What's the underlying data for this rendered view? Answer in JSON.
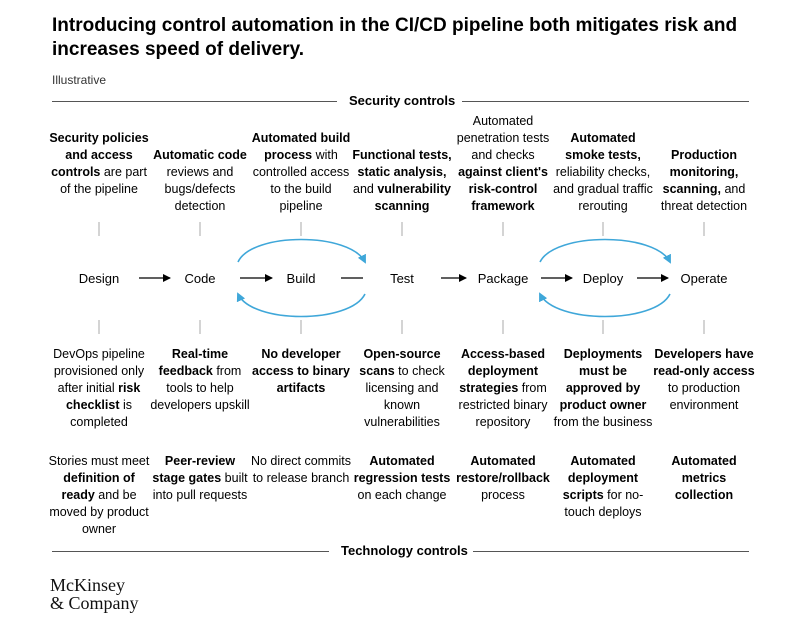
{
  "header": {
    "title": "Introducing control automation in the CI/CD pipeline both mitigates risk and increases speed of delivery.",
    "subtitle": "Illustrative"
  },
  "sections": {
    "security_label": "Security controls",
    "technology_label": "Technology controls"
  },
  "security_controls": [
    {
      "parts": [
        {
          "t": "Security policies and access controls",
          "b": true
        },
        {
          "t": " are part of the pipeline",
          "b": false
        }
      ]
    },
    {
      "parts": [
        {
          "t": "Automatic code",
          "b": true
        },
        {
          "t": " reviews and bugs/defects detection",
          "b": false
        }
      ]
    },
    {
      "parts": [
        {
          "t": "Automated build process",
          "b": true
        },
        {
          "t": " with controlled access to the build pipeline",
          "b": false
        }
      ]
    },
    {
      "parts": [
        {
          "t": "Functional tests, static analysis,",
          "b": true
        },
        {
          "t": " and ",
          "b": false
        },
        {
          "t": "vulnerability scanning",
          "b": true
        }
      ]
    },
    {
      "parts": [
        {
          "t": "Automated penetration tests and checks ",
          "b": false
        },
        {
          "t": "against client's risk-control framework",
          "b": true
        }
      ]
    },
    {
      "parts": [
        {
          "t": "Automated smoke tests,",
          "b": true
        },
        {
          "t": " reliability checks, and gradual traffic rerouting",
          "b": false
        }
      ]
    },
    {
      "parts": [
        {
          "t": "Production monitoring, scanning,",
          "b": true
        },
        {
          "t": " and threat detection",
          "b": false
        }
      ]
    }
  ],
  "stages": [
    "Design",
    "Code",
    "Build",
    "Test",
    "Package",
    "Deploy",
    "Operate"
  ],
  "tech_controls_row1": [
    {
      "parts": [
        {
          "t": "DevOps pipeline provisioned only after initial ",
          "b": false
        },
        {
          "t": "risk checklist",
          "b": true
        },
        {
          "t": " is completed",
          "b": false
        }
      ]
    },
    {
      "parts": [
        {
          "t": "Real-time feedback",
          "b": true
        },
        {
          "t": " from tools to help developers upskill",
          "b": false
        }
      ]
    },
    {
      "parts": [
        {
          "t": "No developer access to binary artifacts",
          "b": true
        }
      ]
    },
    {
      "parts": [
        {
          "t": "Open-source scans",
          "b": true
        },
        {
          "t": " to check licensing and known vulnerabilities",
          "b": false
        }
      ]
    },
    {
      "parts": [
        {
          "t": "Access-based deployment strategies",
          "b": true
        },
        {
          "t": " from restricted binary repository",
          "b": false
        }
      ]
    },
    {
      "parts": [
        {
          "t": "Deployments must be approved by product owner",
          "b": true
        },
        {
          "t": " from the business",
          "b": false
        }
      ]
    },
    {
      "parts": [
        {
          "t": "Developers have read-only access",
          "b": true
        },
        {
          "t": " to production environment",
          "b": false
        }
      ]
    }
  ],
  "tech_controls_row2": [
    {
      "parts": [
        {
          "t": "Stories must meet ",
          "b": false
        },
        {
          "t": "definition of ready",
          "b": true
        },
        {
          "t": " and be moved by product owner",
          "b": false
        }
      ]
    },
    {
      "parts": [
        {
          "t": "Peer-review stage gates",
          "b": true
        },
        {
          "t": " built into pull requests",
          "b": false
        }
      ]
    },
    {
      "parts": [
        {
          "t": "No direct commits to release branch",
          "b": false
        }
      ]
    },
    {
      "parts": [
        {
          "t": "Automated regression tests",
          "b": true
        },
        {
          "t": " on each change",
          "b": false
        }
      ]
    },
    {
      "parts": [
        {
          "t": "Automated restore/rollback",
          "b": true
        },
        {
          "t": " process",
          "b": false
        }
      ]
    },
    {
      "parts": [
        {
          "t": "Automated deployment scripts",
          "b": true
        },
        {
          "t": " for no-touch deploys",
          "b": false
        }
      ]
    },
    {
      "parts": [
        {
          "t": "Automated metrics collection",
          "b": true
        }
      ]
    }
  ],
  "footer": {
    "logo_line1": "McKinsey",
    "logo_line2": "& Company"
  },
  "colors": {
    "loop": "#3fa7d9",
    "rule": "#555555",
    "tick": "#aaaaaa"
  }
}
